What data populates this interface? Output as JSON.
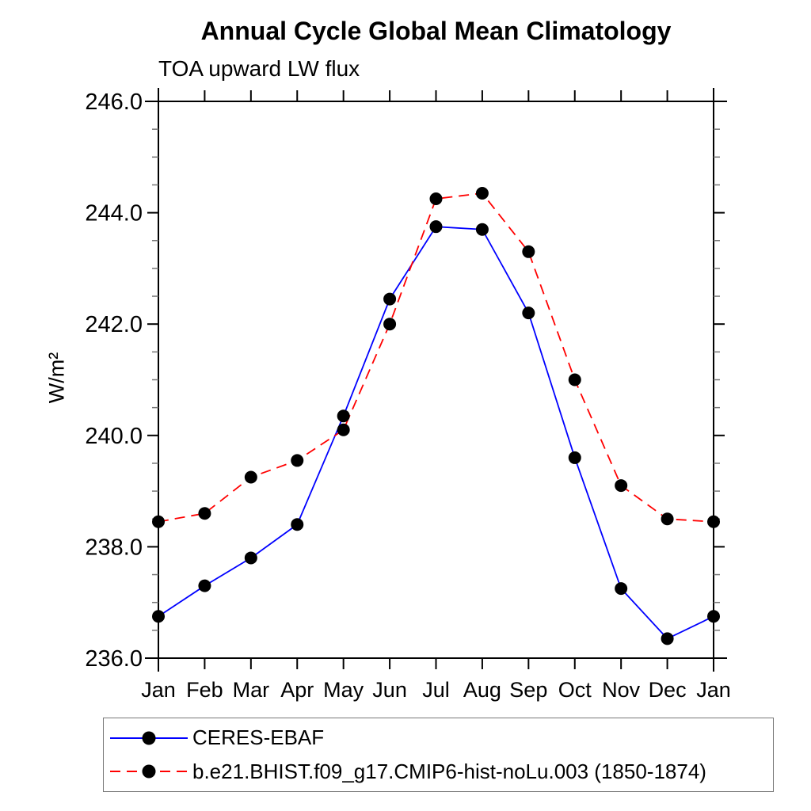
{
  "chart_data": {
    "type": "line",
    "title": "Annual Cycle Global Mean Climatology",
    "subtitle": "TOA upward LW flux",
    "ylabel": "W/m²",
    "xlabel": "",
    "categories": [
      "Jan",
      "Feb",
      "Mar",
      "Apr",
      "May",
      "Jun",
      "Jul",
      "Aug",
      "Sep",
      "Oct",
      "Nov",
      "Dec",
      "Jan"
    ],
    "ylim": [
      236.0,
      246.0
    ],
    "ytick_major_labels": [
      "236.0",
      "238.0",
      "240.0",
      "242.0",
      "244.0",
      "246.0"
    ],
    "ytick_major_values": [
      236.0,
      238.0,
      240.0,
      242.0,
      244.0,
      246.0
    ],
    "ytick_minor_step": 0.5,
    "grid": false,
    "legend_position": "bottom",
    "marker": {
      "shape": "filled-circle",
      "color": "#000000"
    },
    "axis_color": "#000000",
    "series": [
      {
        "name": "CERES-EBAF",
        "color": "#0000ff",
        "line_style": "solid",
        "values": [
          236.75,
          237.3,
          237.8,
          238.4,
          240.35,
          242.45,
          243.75,
          243.7,
          242.2,
          239.6,
          237.25,
          236.35,
          236.75
        ]
      },
      {
        "name": "b.e21.BHIST.f09_g17.CMIP6-hist-noLu.003 (1850-1874)",
        "color": "#ff0000",
        "line_style": "dashed",
        "values": [
          238.45,
          238.6,
          239.25,
          239.55,
          240.1,
          242.0,
          244.25,
          244.35,
          243.3,
          241.0,
          239.1,
          238.5,
          238.45
        ]
      }
    ]
  }
}
